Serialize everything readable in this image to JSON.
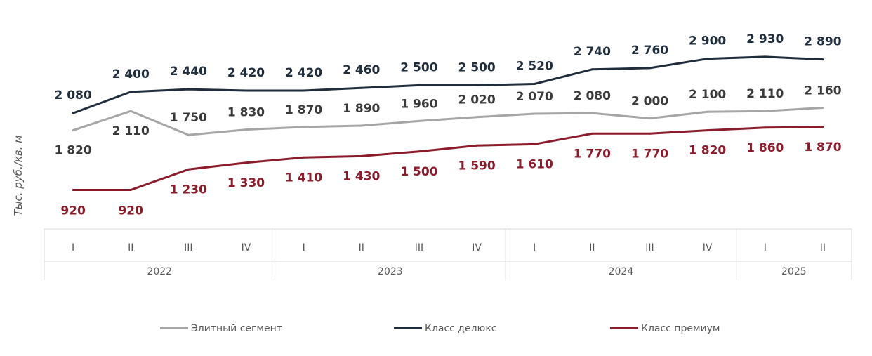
{
  "chart_data": {
    "type": "line",
    "ylabel": "Тыс. руб./кв. м",
    "x": [
      "I",
      "II",
      "III",
      "IV",
      "I",
      "II",
      "III",
      "IV",
      "I",
      "II",
      "III",
      "IV",
      "I",
      "II"
    ],
    "years": [
      {
        "label": "2022",
        "quarters": 4
      },
      {
        "label": "2023",
        "quarters": 4
      },
      {
        "label": "2024",
        "quarters": 4
      },
      {
        "label": "2025",
        "quarters": 2
      }
    ],
    "series": [
      {
        "name": "Класс делюкс",
        "color": "#1f2d3d",
        "values": [
          2080,
          2400,
          2440,
          2420,
          2420,
          2460,
          2500,
          2500,
          2520,
          2740,
          2760,
          2900,
          2930,
          2890
        ],
        "labels": [
          "2 080",
          "2 400",
          "2 440",
          "2 420",
          "2 420",
          "2 460",
          "2 500",
          "2 500",
          "2 520",
          "2 740",
          "2 760",
          "2 900",
          "2 930",
          "2 890"
        ]
      },
      {
        "name": "Элитный сегмент",
        "color": "#a6a6a6",
        "label_color": "#3a3a3a",
        "values": [
          1820,
          2110,
          1750,
          1830,
          1870,
          1890,
          1960,
          2020,
          2070,
          2080,
          2000,
          2100,
          2110,
          2160
        ],
        "labels": [
          "1 820",
          "2 110",
          "1 750",
          "1 830",
          "1 870",
          "1 890",
          "1 960",
          "2 020",
          "2 070",
          "2 080",
          "2 000",
          "2 100",
          "2 110",
          "2 160"
        ]
      },
      {
        "name": "Класс премиум",
        "color": "#8b1c2b",
        "values": [
          920,
          920,
          1230,
          1330,
          1410,
          1430,
          1500,
          1590,
          1610,
          1770,
          1770,
          1820,
          1860,
          1870
        ],
        "labels": [
          "920",
          "920",
          "1 230",
          "1 330",
          "1 410",
          "1 430",
          "1 500",
          "1 590",
          "1 610",
          "1 770",
          "1 770",
          "1 820",
          "1 860",
          "1 870"
        ]
      }
    ],
    "legend_order": [
      "Элитный сегмент",
      "Класс делюкс",
      "Класс премиум"
    ],
    "legend_position": "bottom",
    "grid": false
  }
}
